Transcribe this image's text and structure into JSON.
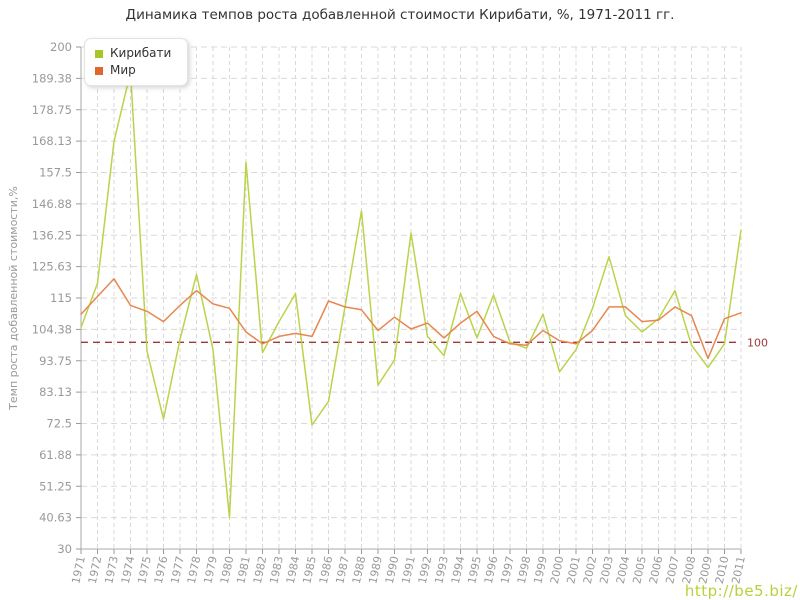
{
  "title": "Динамика темпов роста добавленной стоимости Кирибати, %, 1971-2011 гг.",
  "watermark": "http://be5.biz/",
  "reference_line": {
    "value": 100,
    "label": "100",
    "color": "#9e3a3a"
  },
  "axes": {
    "y_title": "Темп роста добавленной стоимости,%",
    "y_tick_labels": [
      "200",
      "189.38",
      "178.75",
      "168.13",
      "157.5",
      "146.88",
      "136.25",
      "125.63",
      "115",
      "104.38",
      "93.75",
      "83.13",
      "72.5",
      "61.88",
      "51.25",
      "40.63",
      "30"
    ],
    "y_min": 30,
    "y_max": 200
  },
  "legend": [
    {
      "label": "Кирибати",
      "color": "#a6c629"
    },
    {
      "label": "Мир",
      "color": "#e0662e"
    }
  ],
  "colors": {
    "kiribati_line": "#b9d44b",
    "mir_line": "#e8864e",
    "grid": "#d9d9d9",
    "axis": "#a9a9a9",
    "tick_text": "#999999",
    "title_text": "#333333"
  },
  "chart_data": {
    "type": "line",
    "x": [
      1971,
      1972,
      1973,
      1974,
      1975,
      1976,
      1977,
      1978,
      1979,
      1980,
      1981,
      1982,
      1983,
      1984,
      1985,
      1986,
      1987,
      1988,
      1989,
      1990,
      1991,
      1992,
      1993,
      1994,
      1995,
      1996,
      1997,
      1998,
      1999,
      2000,
      2001,
      2002,
      2003,
      2004,
      2005,
      2006,
      2007,
      2008,
      2009,
      2010,
      2011
    ],
    "series": [
      {
        "name": "Кирибати",
        "values": [
          105,
          120,
          168,
          191.5,
          97,
          74,
          101,
          123,
          97.5,
          40.5,
          161,
          96.5,
          107,
          116.5,
          72,
          80,
          112,
          144.5,
          85.5,
          94,
          137,
          102,
          95.5,
          116.5,
          101.5,
          116,
          100,
          98,
          109.5,
          90,
          97.5,
          111.5,
          129,
          109,
          103.5,
          108,
          117.5,
          99,
          91.5,
          99.5,
          138
        ]
      },
      {
        "name": "Мир",
        "values": [
          109.5,
          115.5,
          121.5,
          112.5,
          110.5,
          107,
          112.5,
          117.5,
          113,
          111.5,
          103.5,
          99.5,
          102,
          103,
          102,
          114,
          112,
          111,
          104,
          108.5,
          104.5,
          106.5,
          101.5,
          106.5,
          110.5,
          102,
          99.5,
          99,
          104,
          100.5,
          99.5,
          104,
          112,
          112,
          107,
          107.5,
          112,
          109,
          94.5,
          108,
          110
        ]
      }
    ],
    "ylim": [
      30,
      200
    ],
    "grid": true,
    "legend_position": "top-left",
    "reference_value": 100
  }
}
